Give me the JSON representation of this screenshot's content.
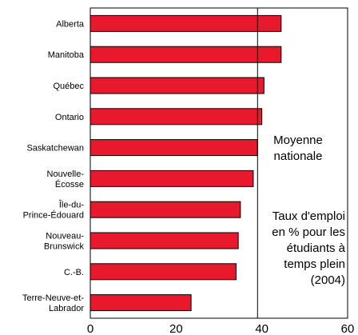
{
  "chart_data": {
    "type": "bar",
    "orientation": "horizontal",
    "categories": [
      [
        "Alberta"
      ],
      [
        "Manitoba"
      ],
      [
        "Québec"
      ],
      [
        "Ontario"
      ],
      [
        "Saskatchewan"
      ],
      [
        "Nouvelle-",
        "Écosse"
      ],
      [
        "Île-du-",
        "Prince-Édouard"
      ],
      [
        "Nouveau-",
        "Brunswick"
      ],
      [
        "C.-B."
      ],
      [
        "Terre-Neuve-et-",
        "Labrador"
      ]
    ],
    "values": [
      44.5,
      44.5,
      40.5,
      40,
      39,
      38,
      35,
      34.5,
      34,
      23.5
    ],
    "xlim": [
      0,
      60
    ],
    "xticks": [
      "0",
      "20",
      "40",
      "60"
    ],
    "reference_line": {
      "value": 39,
      "label": [
        "Moyenne",
        "nationale"
      ]
    },
    "annotation": [
      "Taux d'emploi",
      "en % pour les",
      "étudiants à",
      "temps plein",
      "(2004)"
    ],
    "bar_color": "#e8192c",
    "bar_edge_color": "#000000",
    "grid": false
  }
}
